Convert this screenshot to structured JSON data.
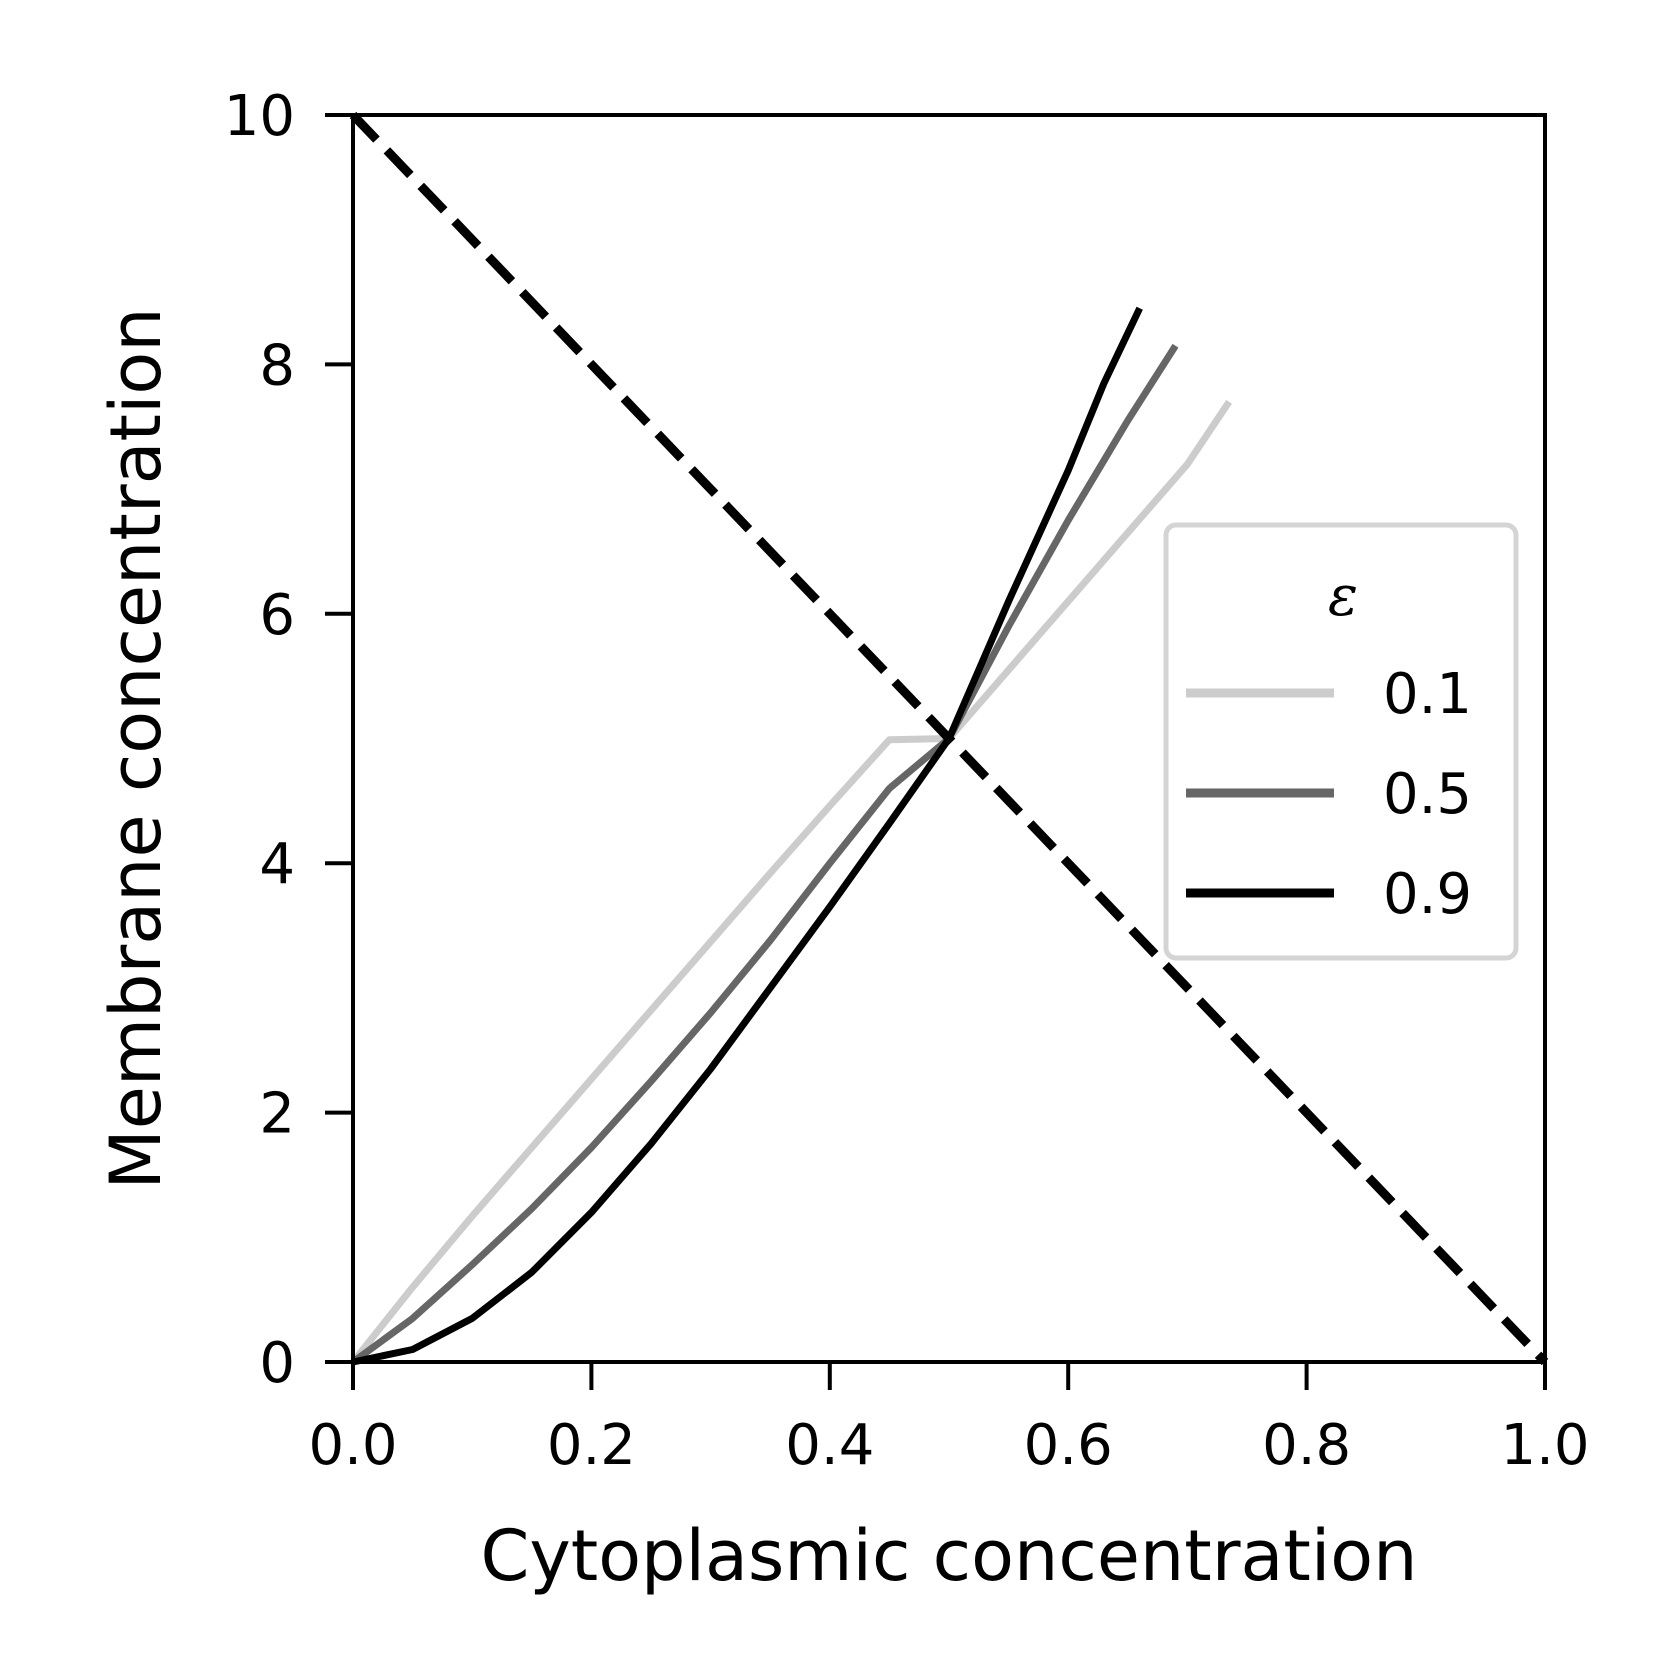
{
  "chart_data": {
    "type": "line",
    "xlabel": "Cytoplasmic concentration",
    "ylabel": "Membrane concentration",
    "xlim": [
      0.0,
      1.0
    ],
    "ylim": [
      0,
      10
    ],
    "xticks": [
      "0.0",
      "0.2",
      "0.4",
      "0.6",
      "0.8",
      "1.0"
    ],
    "yticks": [
      "0",
      "2",
      "4",
      "6",
      "8",
      "10"
    ],
    "grid": false,
    "legend": {
      "title": "ε",
      "position": "center-right"
    },
    "series": [
      {
        "name": "0.1",
        "color": "#cccccc",
        "x": [
          0.0,
          0.05,
          0.1,
          0.15,
          0.2,
          0.25,
          0.3,
          0.35,
          0.4,
          0.45,
          0.5,
          0.55,
          0.6,
          0.65,
          0.7,
          0.735
        ],
        "y": [
          0.0,
          0.6,
          1.17,
          1.72,
          2.27,
          2.82,
          3.37,
          3.92,
          4.46,
          4.99,
          5.0,
          5.55,
          6.1,
          6.65,
          7.2,
          7.7
        ]
      },
      {
        "name": "0.5",
        "color": "#666666",
        "x": [
          0.0,
          0.05,
          0.1,
          0.15,
          0.2,
          0.25,
          0.3,
          0.35,
          0.4,
          0.45,
          0.5,
          0.55,
          0.6,
          0.65,
          0.69
        ],
        "y": [
          0.0,
          0.35,
          0.78,
          1.23,
          1.72,
          2.25,
          2.8,
          3.38,
          4.0,
          4.6,
          5.0,
          5.9,
          6.75,
          7.55,
          8.15
        ]
      },
      {
        "name": "0.9",
        "color": "#000000",
        "x": [
          0.0,
          0.05,
          0.1,
          0.15,
          0.2,
          0.25,
          0.3,
          0.35,
          0.4,
          0.45,
          0.5,
          0.55,
          0.6,
          0.63,
          0.66
        ],
        "y": [
          0.0,
          0.1,
          0.35,
          0.72,
          1.2,
          1.75,
          2.35,
          3.0,
          3.65,
          4.32,
          5.0,
          6.1,
          7.15,
          7.85,
          8.45
        ]
      },
      {
        "name": "",
        "color": "#000000",
        "dashed": true,
        "x": [
          0.0,
          1.0
        ],
        "y": [
          10.0,
          0.0
        ]
      }
    ]
  }
}
